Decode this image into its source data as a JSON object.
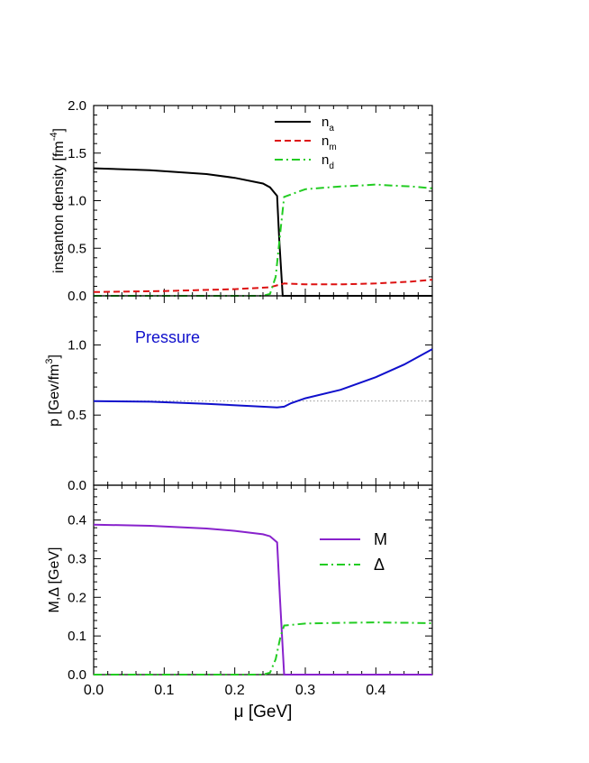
{
  "chart_data": [
    {
      "type": "line",
      "ylabel": "instanton density [fm",
      "ylabel_sup": "-4",
      "ylabel_end": "]",
      "xlim": [
        0.0,
        0.48
      ],
      "ylim": [
        0.0,
        2.0
      ],
      "yticks": [
        0.0,
        0.5,
        1.0,
        1.5,
        2.0
      ],
      "ytick_labels": [
        "0.0",
        "0.5",
        "1.0",
        "1.5",
        "2.0"
      ],
      "legend_position": "top-right",
      "series": [
        {
          "name": "n_a",
          "label_main": "n",
          "label_sub": "a",
          "color": "#000000",
          "dash": "solid",
          "points": [
            [
              0.0,
              1.34
            ],
            [
              0.08,
              1.32
            ],
            [
              0.16,
              1.28
            ],
            [
              0.2,
              1.24
            ],
            [
              0.24,
              1.18
            ],
            [
              0.25,
              1.14
            ],
            [
              0.26,
              1.05
            ],
            [
              0.263,
              0.6
            ],
            [
              0.268,
              0.0
            ],
            [
              0.48,
              0.0
            ]
          ]
        },
        {
          "name": "n_m",
          "label_main": "n",
          "label_sub": "m",
          "color": "#dd1111",
          "dash": "dashed",
          "points": [
            [
              0.0,
              0.04
            ],
            [
              0.1,
              0.05
            ],
            [
              0.2,
              0.07
            ],
            [
              0.25,
              0.09
            ],
            [
              0.27,
              0.13
            ],
            [
              0.3,
              0.12
            ],
            [
              0.35,
              0.12
            ],
            [
              0.4,
              0.13
            ],
            [
              0.45,
              0.15
            ],
            [
              0.48,
              0.17
            ]
          ]
        },
        {
          "name": "n_d",
          "label_main": "n",
          "label_sub": "d",
          "color": "#22cc22",
          "dash": "dashdot",
          "points": [
            [
              0.0,
              0.0
            ],
            [
              0.24,
              0.0
            ],
            [
              0.25,
              0.02
            ],
            [
              0.258,
              0.2
            ],
            [
              0.265,
              0.7
            ],
            [
              0.27,
              1.04
            ],
            [
              0.3,
              1.12
            ],
            [
              0.35,
              1.15
            ],
            [
              0.38,
              1.16
            ],
            [
              0.4,
              1.17
            ],
            [
              0.42,
              1.16
            ],
            [
              0.45,
              1.15
            ],
            [
              0.48,
              1.13
            ]
          ]
        }
      ]
    },
    {
      "type": "line",
      "ylabel": "p [Gev/fm",
      "ylabel_sup": "3",
      "ylabel_end": "]",
      "annotation": "Pressure",
      "annotation_color": "#1010cc",
      "xlim": [
        0.0,
        0.48
      ],
      "ylim": [
        0.0,
        1.35
      ],
      "yticks": [
        0.0,
        0.5,
        1.0
      ],
      "ytick_labels": [
        "0.0",
        "0.5",
        "1.0"
      ],
      "reference_line": {
        "y": 0.6,
        "color": "#999999",
        "dash": "dotted"
      },
      "series": [
        {
          "name": "p",
          "color": "#1010cc",
          "dash": "solid",
          "points": [
            [
              0.0,
              0.6
            ],
            [
              0.08,
              0.595
            ],
            [
              0.16,
              0.58
            ],
            [
              0.22,
              0.565
            ],
            [
              0.26,
              0.555
            ],
            [
              0.27,
              0.56
            ],
            [
              0.28,
              0.585
            ],
            [
              0.3,
              0.62
            ],
            [
              0.35,
              0.68
            ],
            [
              0.4,
              0.77
            ],
            [
              0.44,
              0.86
            ],
            [
              0.48,
              0.97
            ]
          ]
        }
      ]
    },
    {
      "type": "line",
      "ylabel": "M,Δ [GeV]",
      "xlabel": "μ [GeV]",
      "xlim": [
        0.0,
        0.48
      ],
      "ylim": [
        0.0,
        0.49
      ],
      "xticks": [
        0.0,
        0.1,
        0.2,
        0.3,
        0.4
      ],
      "xtick_labels": [
        "0.0",
        "0.1",
        "0.2",
        "0.3",
        "0.4"
      ],
      "yticks": [
        0.0,
        0.1,
        0.2,
        0.3,
        0.4
      ],
      "ytick_labels": [
        "0.0",
        "0.1",
        "0.2",
        "0.3",
        "0.4"
      ],
      "legend_position": "right",
      "series": [
        {
          "name": "M",
          "color": "#8822cc",
          "dash": "solid",
          "points": [
            [
              0.0,
              0.388
            ],
            [
              0.08,
              0.385
            ],
            [
              0.16,
              0.378
            ],
            [
              0.2,
              0.372
            ],
            [
              0.24,
              0.363
            ],
            [
              0.25,
              0.358
            ],
            [
              0.26,
              0.342
            ],
            [
              0.264,
              0.2
            ],
            [
              0.27,
              0.0
            ],
            [
              0.48,
              0.0
            ]
          ]
        },
        {
          "name": "Δ",
          "color": "#22cc22",
          "dash": "dashdot",
          "points": [
            [
              0.0,
              0.0
            ],
            [
              0.24,
              0.0
            ],
            [
              0.25,
              0.005
            ],
            [
              0.258,
              0.04
            ],
            [
              0.265,
              0.1
            ],
            [
              0.27,
              0.127
            ],
            [
              0.3,
              0.132
            ],
            [
              0.35,
              0.134
            ],
            [
              0.4,
              0.135
            ],
            [
              0.45,
              0.134
            ],
            [
              0.48,
              0.133
            ]
          ]
        }
      ]
    }
  ]
}
